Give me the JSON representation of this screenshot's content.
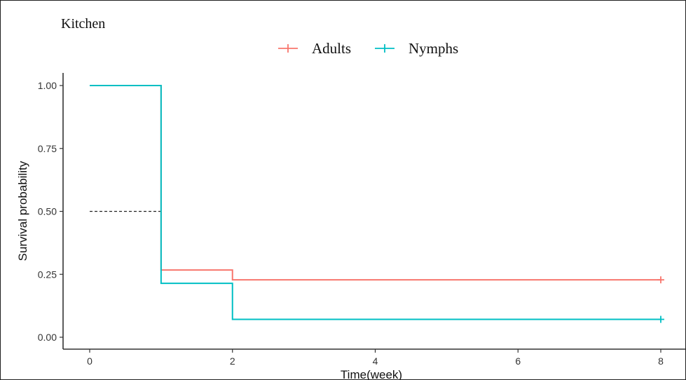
{
  "panel_label": "Kitchen",
  "chart_data": {
    "type": "line",
    "subtype": "kaplan-meier-step",
    "xlabel": "Time(week)",
    "ylabel": "Survival probability",
    "xlim": [
      0,
      8
    ],
    "ylim": [
      0,
      1
    ],
    "x_ticks": [
      0,
      2,
      4,
      6,
      8
    ],
    "y_ticks": [
      0.0,
      0.25,
      0.5,
      0.75,
      1.0
    ],
    "x_tick_labels": [
      "0",
      "2",
      "4",
      "6",
      "8"
    ],
    "y_tick_labels": [
      "0.00",
      "0.25",
      "0.50",
      "0.75",
      "1.00"
    ],
    "grid": false,
    "legend_position": "top",
    "series": [
      {
        "name": "Adults",
        "color": "#f8766d",
        "steps": [
          [
            0,
            1.0
          ],
          [
            1,
            0.267
          ],
          [
            2,
            0.228
          ],
          [
            8,
            0.228
          ]
        ],
        "censor_marks": [
          [
            8,
            0.228
          ]
        ]
      },
      {
        "name": "Nymphs",
        "color": "#00bfc4",
        "steps": [
          [
            0,
            1.0
          ],
          [
            1,
            0.214
          ],
          [
            2,
            0.071
          ],
          [
            8,
            0.071
          ]
        ],
        "censor_marks": [
          [
            8,
            0.071
          ]
        ]
      }
    ],
    "median_line": {
      "y": 0.5,
      "x_end": 1,
      "style": "dashed",
      "color": "#222222"
    }
  }
}
